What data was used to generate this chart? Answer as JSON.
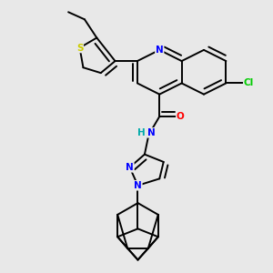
{
  "bg_color": "#e8e8e8",
  "bond_color": "#000000",
  "bond_lw": 1.4,
  "dbo": 0.18,
  "atom_colors": {
    "N": "#0000ff",
    "S": "#cccc00",
    "O": "#ff0000",
    "Cl": "#00cc00",
    "H": "#00aaaa"
  },
  "font_size": 7.5,
  "fig_size": [
    3.0,
    3.0
  ],
  "dpi": 100
}
